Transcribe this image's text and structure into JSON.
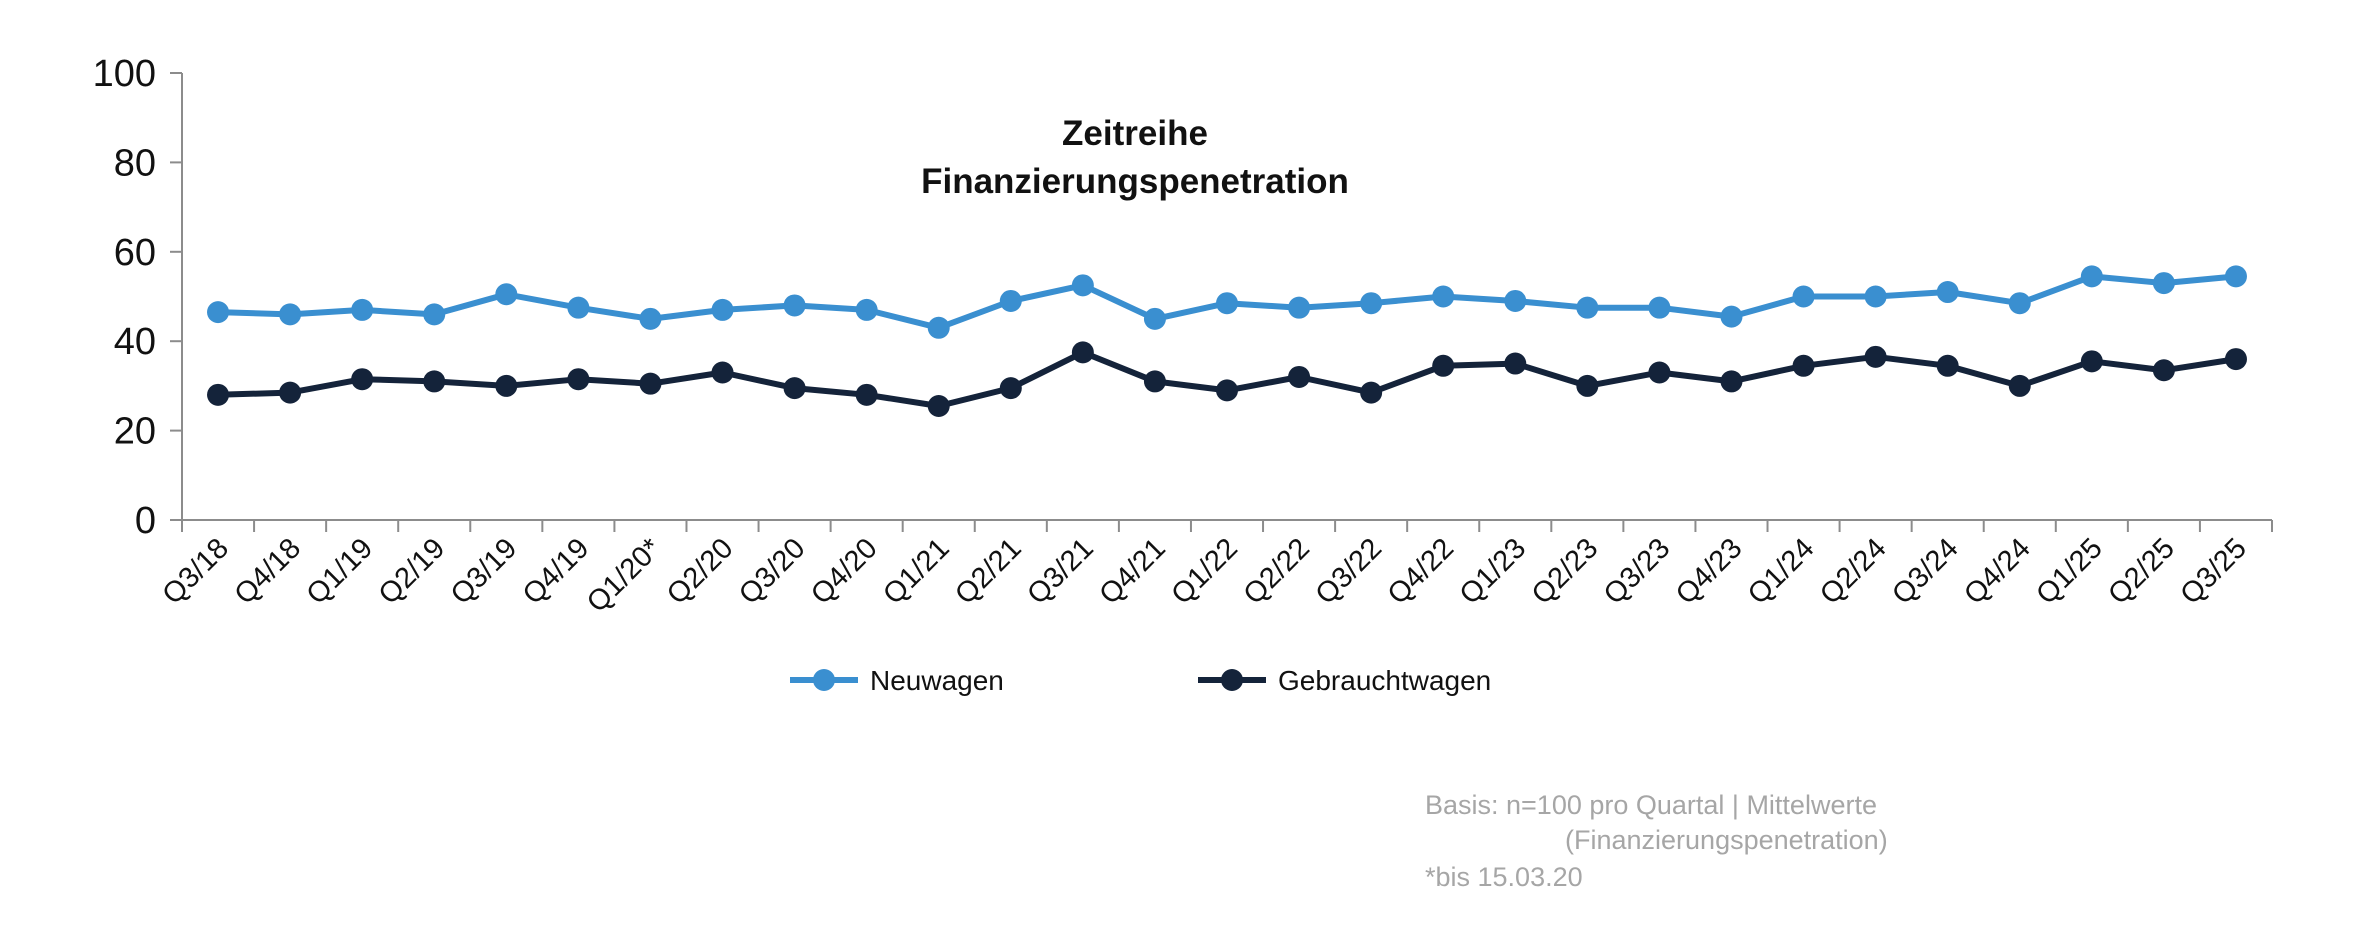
{
  "chart_data": {
    "type": "line",
    "title": [
      "Zeitreihe",
      "Finanzierungspenetration"
    ],
    "categories": [
      "Q3/18",
      "Q4/18",
      "Q1/19",
      "Q2/19",
      "Q3/19",
      "Q4/19",
      "Q1/20*",
      "Q2/20",
      "Q3/20",
      "Q4/20",
      "Q1/21",
      "Q2/21",
      "Q3/21",
      "Q4/21",
      "Q1/22",
      "Q2/22",
      "Q3/22",
      "Q4/22",
      "Q1/23",
      "Q2/23",
      "Q3/23",
      "Q4/23",
      "Q1/24",
      "Q2/24",
      "Q3/24",
      "Q4/24",
      "Q1/25",
      "Q2/25",
      "Q3/25"
    ],
    "series": [
      {
        "name": "Neuwagen",
        "color": "#3a8fd0",
        "values": [
          46.5,
          46,
          47,
          46,
          50.5,
          47.5,
          45,
          47,
          48,
          47,
          43,
          49,
          52.5,
          45,
          48.5,
          47.5,
          48.5,
          50,
          49,
          47.5,
          47.5,
          45.5,
          50,
          50,
          51,
          48.5,
          54.5,
          53,
          54.5
        ]
      },
      {
        "name": "Gebrauchtwagen",
        "color": "#14233a",
        "values": [
          28,
          28.5,
          31.5,
          31,
          30,
          31.5,
          30.5,
          33,
          29.5,
          28,
          25.5,
          29.5,
          37.5,
          31,
          29,
          32,
          28.5,
          34.5,
          35,
          30,
          33,
          31,
          34.5,
          36.5,
          34.5,
          30,
          35.5,
          33.5,
          36
        ]
      }
    ],
    "ylim": [
      0,
      100
    ],
    "yticks": [
      0,
      20,
      40,
      60,
      80,
      100
    ],
    "xlabel": "",
    "ylabel": "",
    "legend": "bottom-center"
  },
  "notes": {
    "line1": "Basis: n=100 pro Quartal | Mittelwerte",
    "line2": "(Finanzierungspenetration)",
    "line3": "*bis 15.03.20"
  }
}
